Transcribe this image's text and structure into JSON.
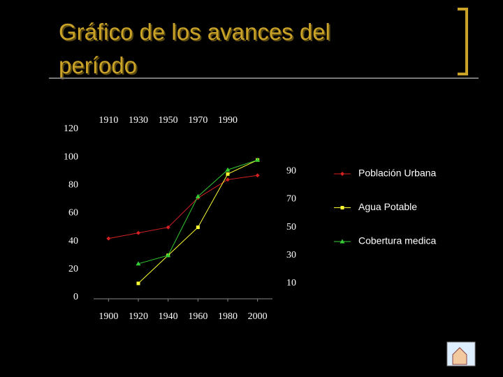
{
  "chart_data": {
    "type": "line",
    "title": "Gráfico de los avances del período",
    "x": [
      1900,
      1920,
      1940,
      1960,
      1980,
      2000
    ],
    "xlim": [
      1890,
      2010
    ],
    "xticks": [
      1900,
      1920,
      1940,
      1960,
      1980,
      2000
    ],
    "x2lim": [
      1900,
      2020
    ],
    "x2ticks": [
      1910,
      1930,
      1950,
      1970,
      1990
    ],
    "ylim": [
      0,
      120
    ],
    "yticks": [
      0,
      20,
      40,
      60,
      80,
      100,
      120
    ],
    "y2lim": [
      0,
      120
    ],
    "y2ticks": [
      10,
      30,
      50,
      70,
      90
    ],
    "legend": "right",
    "series": [
      {
        "name": "Población Urbana",
        "color": "#d42020",
        "marker": "diamond",
        "values": [
          42,
          46,
          50,
          71,
          84,
          87
        ]
      },
      {
        "name": "Agua Potable",
        "color": "#ffff33",
        "marker": "square",
        "values": [
          null,
          10,
          30,
          50,
          88,
          98
        ]
      },
      {
        "name": "Cobertura medica",
        "color": "#33cc33",
        "marker": "triangle",
        "values": [
          null,
          24,
          30,
          72,
          91,
          98
        ]
      }
    ]
  }
}
